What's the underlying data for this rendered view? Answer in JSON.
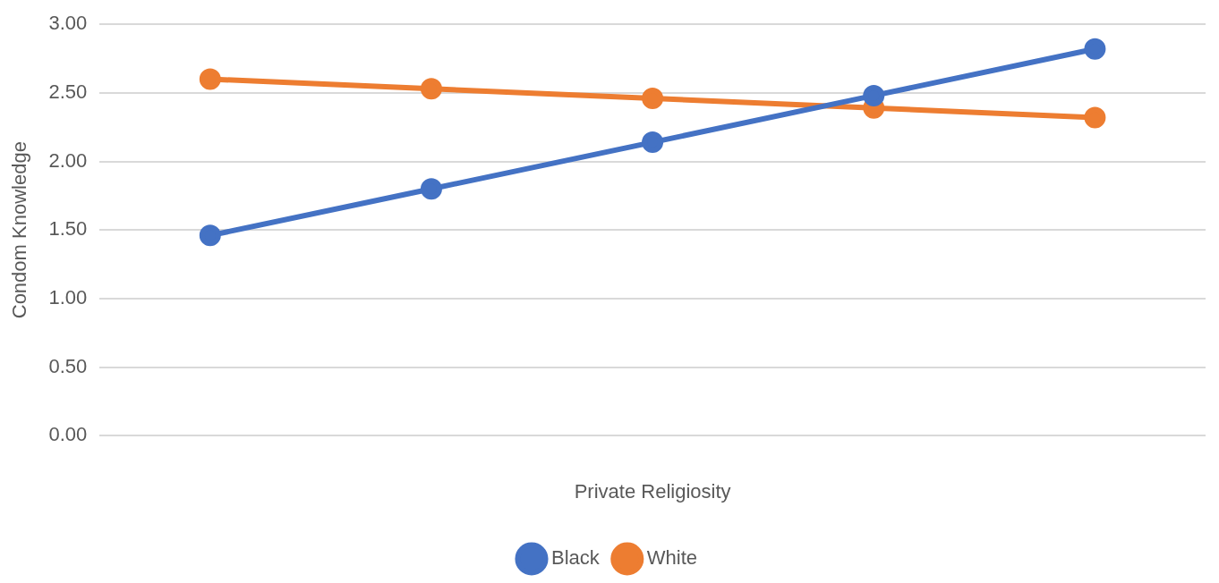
{
  "chart_data": {
    "type": "line",
    "xlabel": "Private Religiosity",
    "ylabel": "Condom Knowledge",
    "categories": [
      null,
      null,
      null,
      null,
      null
    ],
    "series": [
      {
        "name": "Black",
        "color": "#4472c4",
        "values": [
          1.46,
          1.8,
          2.14,
          2.48,
          2.82
        ]
      },
      {
        "name": "White",
        "color": "#ed7d31",
        "values": [
          2.6,
          2.53,
          2.46,
          2.39,
          2.32
        ]
      }
    ],
    "ylim": [
      0,
      3
    ],
    "yticks": [
      {
        "value": 0,
        "label": "0.00"
      },
      {
        "value": 0.5,
        "label": "0.50"
      },
      {
        "value": 1,
        "label": "1.00"
      },
      {
        "value": 1.5,
        "label": "1.50"
      },
      {
        "value": 2,
        "label": "2.00"
      },
      {
        "value": 2.5,
        "label": "2.50"
      },
      {
        "value": 3,
        "label": "3.00"
      }
    ],
    "grid": "y",
    "legend": "bottom",
    "marker": "circle",
    "line_style": "solid"
  }
}
